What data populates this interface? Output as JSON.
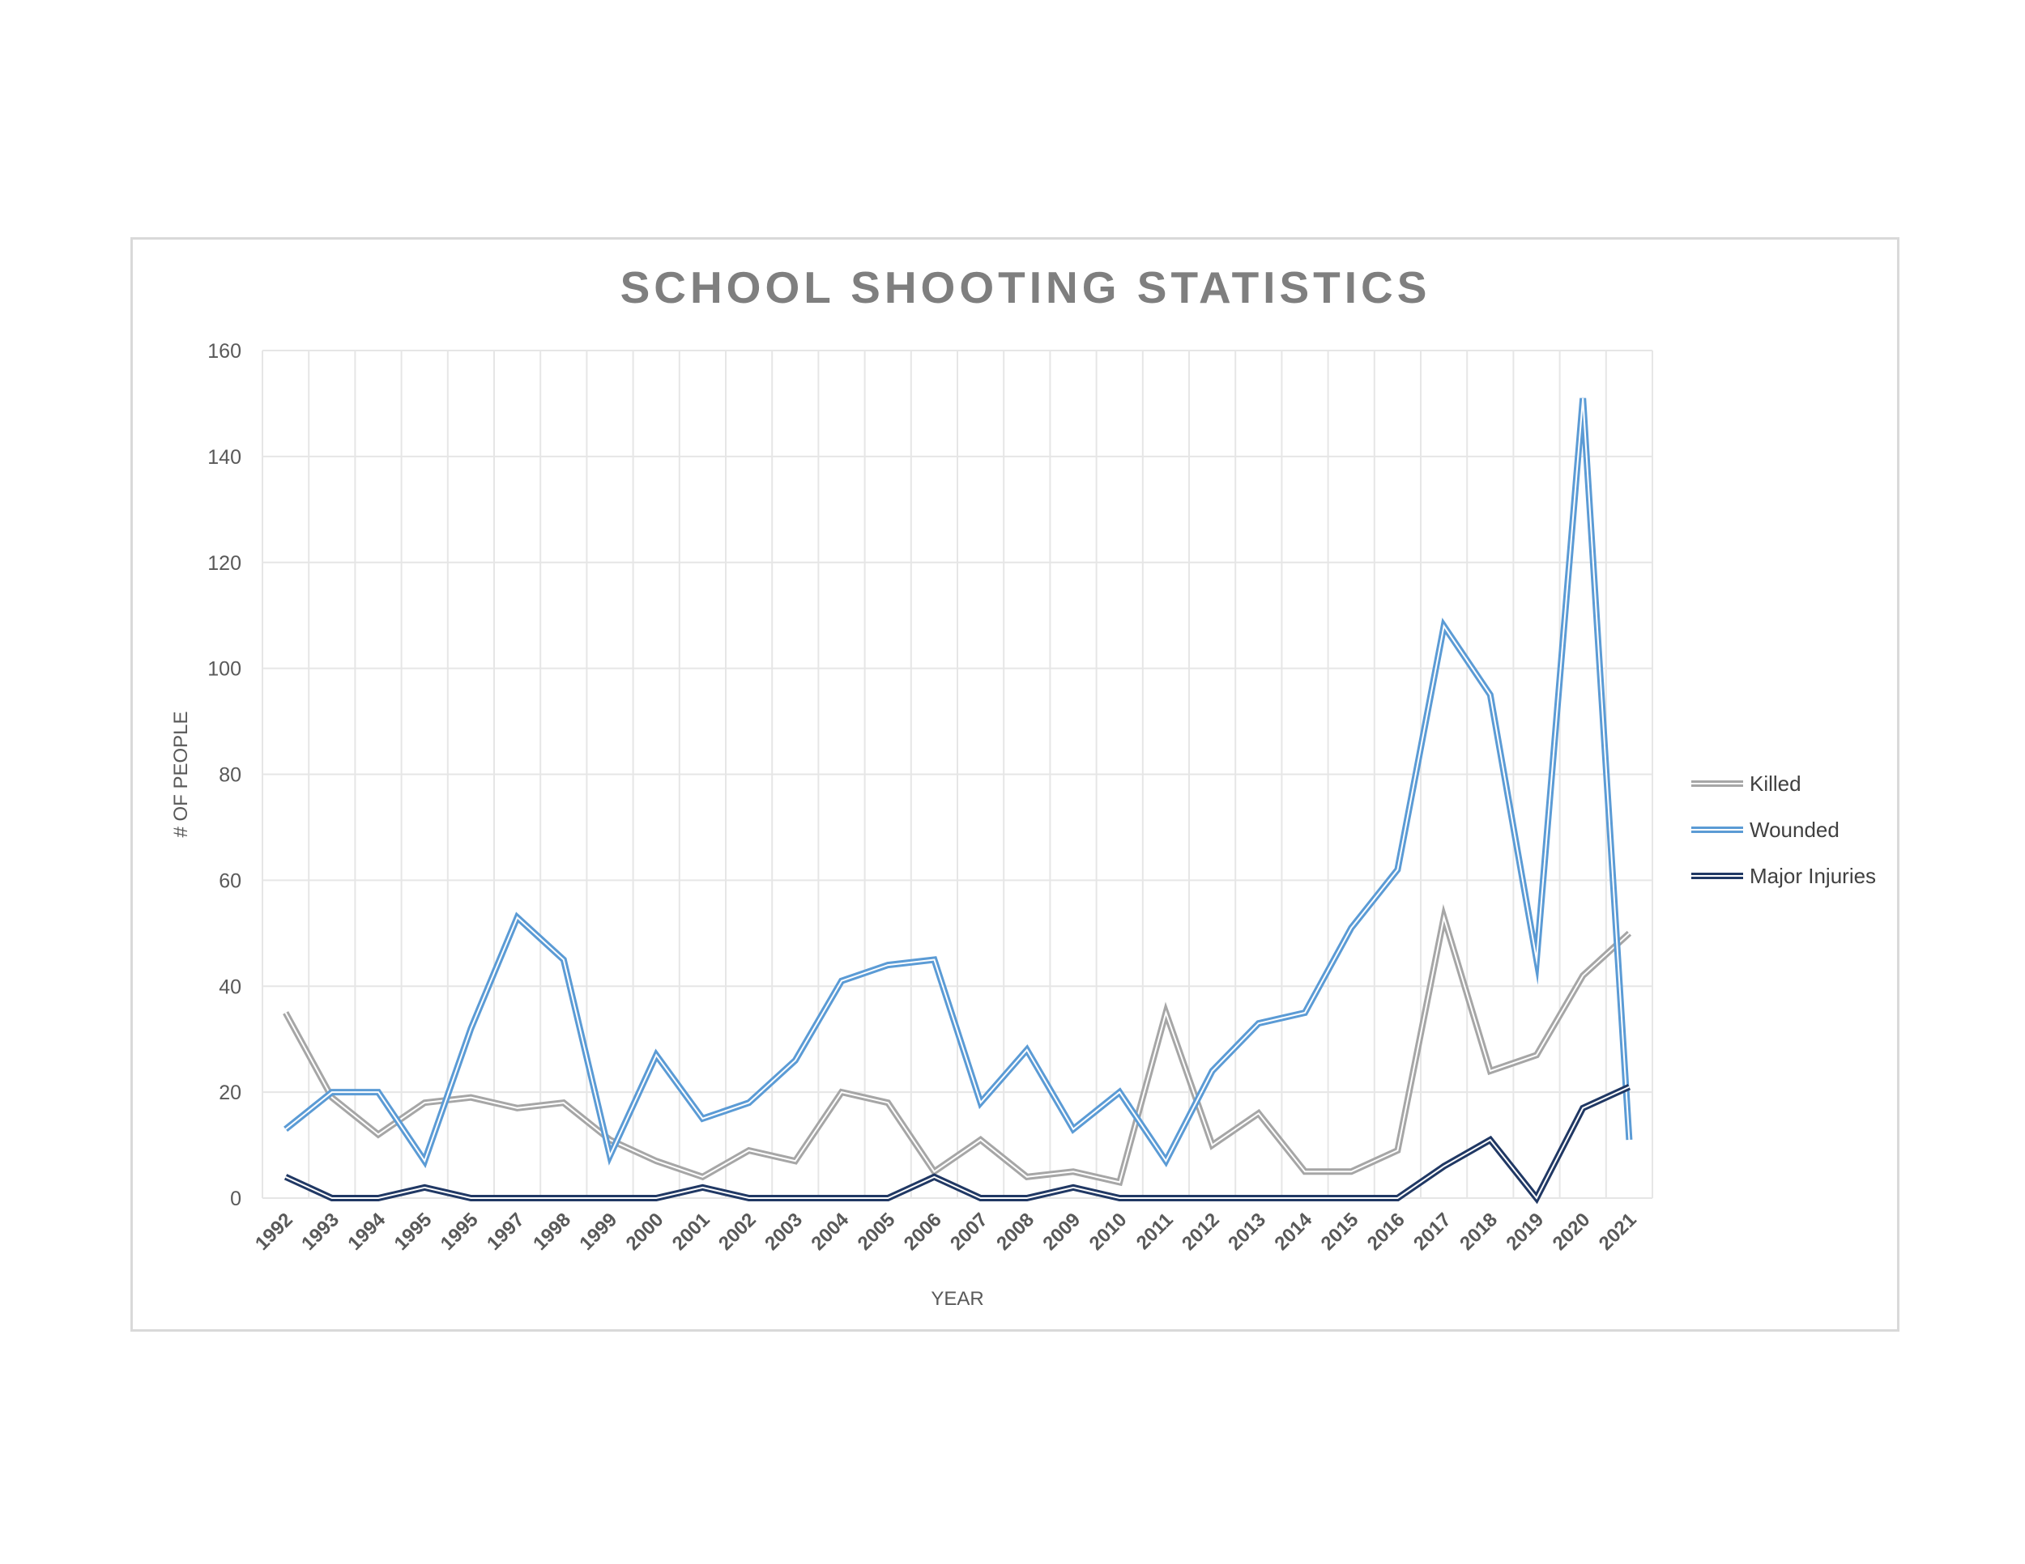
{
  "chart_data": {
    "type": "line",
    "title": "SCHOOL SHOOTING STATISTICS",
    "xlabel": "YEAR",
    "ylabel": "# OF PEOPLE",
    "ylim": [
      0,
      160
    ],
    "yticks": [
      "0",
      "20",
      "40",
      "60",
      "80",
      "100",
      "120",
      "140",
      "160"
    ],
    "grid": true,
    "legend_position": "right",
    "categories": [
      "1992",
      "1993",
      "1994",
      "1995",
      "1995",
      "1997",
      "1998",
      "1999",
      "2000",
      "2001",
      "2002",
      "2003",
      "2004",
      "2005",
      "2006",
      "2007",
      "2008",
      "2009",
      "2010",
      "2011",
      "2012",
      "2013",
      "2014",
      "2015",
      "2016",
      "2017",
      "2018",
      "2019",
      "2020",
      "2021"
    ],
    "series": [
      {
        "name": "Killed",
        "color": "#a6a6a6",
        "values": [
          35,
          19,
          12,
          18,
          19,
          17,
          18,
          11,
          7,
          4,
          9,
          7,
          20,
          18,
          5,
          11,
          4,
          5,
          3,
          35,
          10,
          16,
          5,
          5,
          9,
          53,
          24,
          27,
          42,
          50
        ]
      },
      {
        "name": "Wounded",
        "color": "#5b9bd5",
        "values": [
          13,
          20,
          20,
          7,
          32,
          53,
          45,
          8,
          27,
          15,
          18,
          26,
          41,
          44,
          45,
          18,
          28,
          13,
          20,
          7,
          24,
          33,
          35,
          51,
          62,
          108,
          95,
          45,
          151,
          11
        ]
      },
      {
        "name": "Major Injuries",
        "color": "#203864",
        "values": [
          4,
          0,
          0,
          2,
          0,
          0,
          0,
          0,
          0,
          2,
          0,
          0,
          0,
          0,
          4,
          0,
          0,
          2,
          0,
          0,
          0,
          0,
          0,
          0,
          0,
          6,
          11,
          0,
          17,
          21
        ]
      }
    ]
  }
}
